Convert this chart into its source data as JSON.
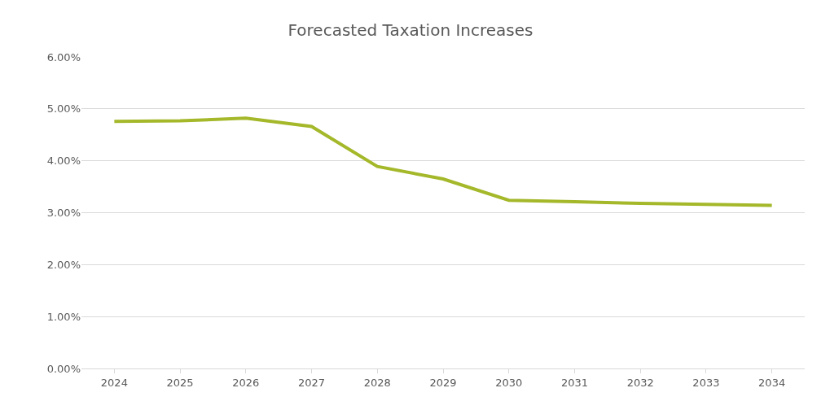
{
  "chart_data": {
    "type": "line",
    "title": "Forecasted Taxation Increases",
    "categories": [
      "2024",
      "2025",
      "2026",
      "2027",
      "2028",
      "2029",
      "2030",
      "2031",
      "2032",
      "2033",
      "2034"
    ],
    "series": [
      {
        "color": "#a4b82a",
        "values": [
          4.76,
          4.77,
          4.82,
          4.66,
          3.89,
          3.65,
          3.24,
          3.21,
          3.18,
          3.16,
          3.14
        ]
      }
    ],
    "ylim": [
      0,
      6
    ],
    "yticks": [
      {
        "value": 0,
        "label": "0.00%"
      },
      {
        "value": 1,
        "label": "1.00%"
      },
      {
        "value": 2,
        "label": "2.00%"
      },
      {
        "value": 3,
        "label": "3.00%"
      },
      {
        "value": 4,
        "label": "4.00%"
      },
      {
        "value": 5,
        "label": "5.00%"
      },
      {
        "value": 6,
        "label": "6.00%"
      }
    ],
    "grid": "y",
    "marker": "none",
    "line_style": "solid"
  }
}
